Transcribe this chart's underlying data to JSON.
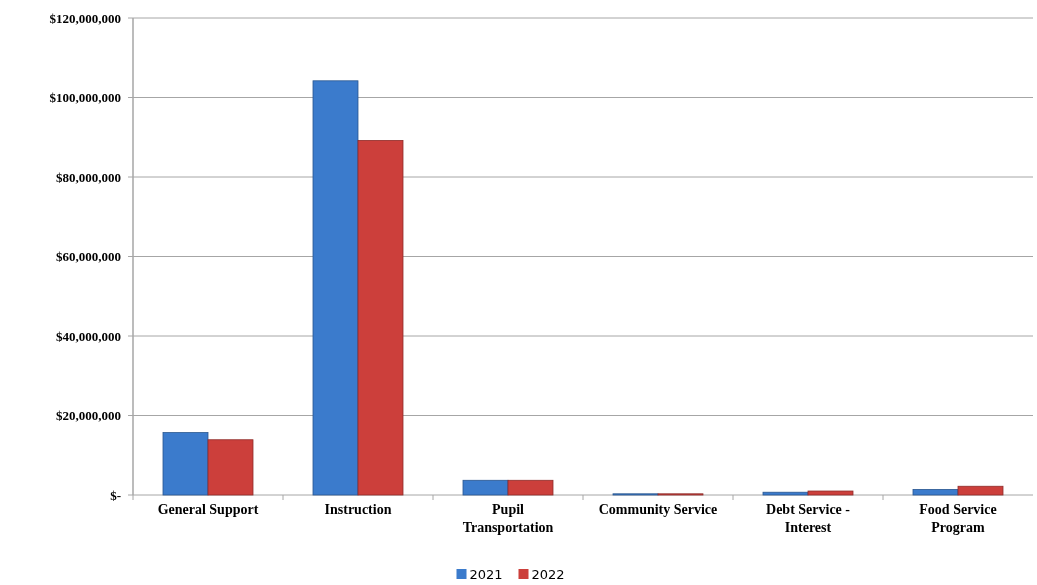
{
  "chart_data": {
    "type": "bar",
    "categories": [
      "General Support",
      "Instruction",
      "Pupil Transportation",
      "Community Service",
      "Debt Service - Interest",
      "Food Service Program"
    ],
    "series": [
      {
        "name": "2021",
        "color": "#3b7bcc",
        "values": [
          15700000,
          104200000,
          3700000,
          300000,
          700000,
          1400000
        ]
      },
      {
        "name": "2022",
        "color": "#cc3f3b",
        "values": [
          13900000,
          89200000,
          3700000,
          300000,
          1000000,
          2200000
        ]
      }
    ],
    "ylim": [
      0,
      120000000
    ],
    "yticks": [
      {
        "value": 0,
        "label": "$-"
      },
      {
        "value": 20000000,
        "label": "$20,000,000"
      },
      {
        "value": 40000000,
        "label": "$40,000,000"
      },
      {
        "value": 60000000,
        "label": "$60,000,000"
      },
      {
        "value": 80000000,
        "label": "$80,000,000"
      },
      {
        "value": 100000000,
        "label": "$100,000,000"
      },
      {
        "value": 120000000,
        "label": "$120,000,000"
      }
    ],
    "grid": "y",
    "legend": "bottom"
  }
}
